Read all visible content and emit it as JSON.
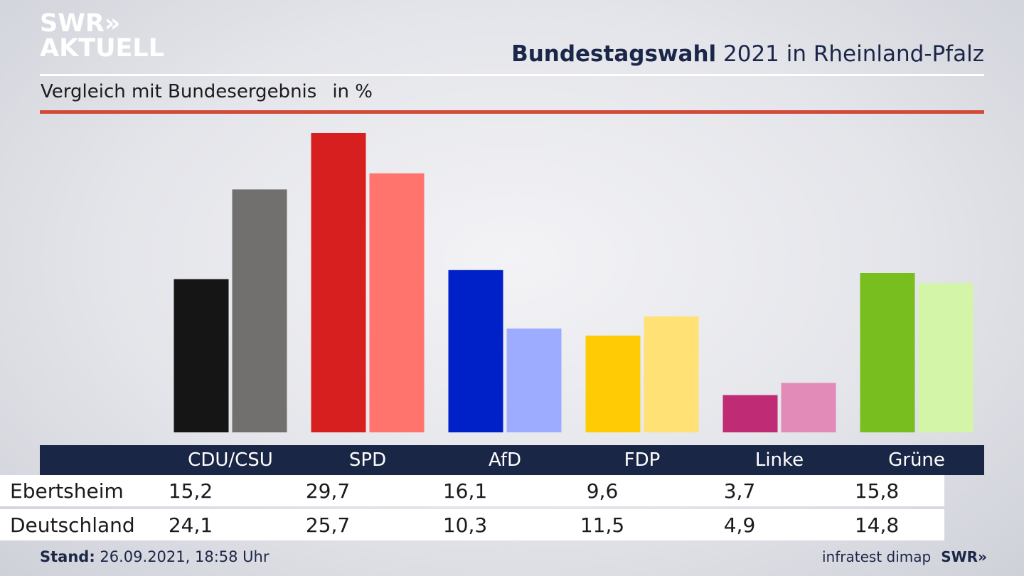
{
  "header": {
    "logo_line1": "SWR",
    "logo_line2": "AKTUELL",
    "logo_chevrons": "»",
    "title_bold": "Bundestagswahl",
    "title_rest": " 2021 in Rheinland-Pfalz",
    "subtitle": "Vergleich mit Bundesergebnis",
    "unit": "in %"
  },
  "colors": {
    "navy": "#1a2646",
    "rule_red": "#d24a3d"
  },
  "chart_data": {
    "type": "bar",
    "categories": [
      "CDU/CSU",
      "SPD",
      "AfD",
      "FDP",
      "Linke",
      "Grüne"
    ],
    "series": [
      {
        "name": "Ebertsheim",
        "values": [
          15.2,
          29.7,
          16.1,
          9.6,
          3.7,
          15.8
        ],
        "colors": [
          "#151515",
          "#d81f1f",
          "#0020c8",
          "#ffcb05",
          "#bf2c75",
          "#78be1e"
        ]
      },
      {
        "name": "Deutschland",
        "values": [
          24.1,
          25.7,
          10.3,
          11.5,
          4.9,
          14.8
        ],
        "colors": [
          "#72706e",
          "#ff756d",
          "#9eacff",
          "#ffe175",
          "#e28bb8",
          "#d3f5a8"
        ]
      }
    ],
    "ylim": [
      0,
      30
    ],
    "grid": false,
    "legend": "table-below"
  },
  "table": {
    "rows": [
      {
        "label": "Ebertsheim",
        "values": [
          "15,2",
          "29,7",
          "16,1",
          "9,6",
          "3,7",
          "15,8"
        ]
      },
      {
        "label": "Deutschland",
        "values": [
          "24,1",
          "25,7",
          "10,3",
          "11,5",
          "4,9",
          "14,8"
        ]
      }
    ]
  },
  "footer": {
    "stand_label": "Stand:",
    "stand_value": " 26.09.2021, 18:58 Uhr",
    "source": "infratest dimap",
    "brand": "SWR",
    "brand_chevrons": "»"
  }
}
